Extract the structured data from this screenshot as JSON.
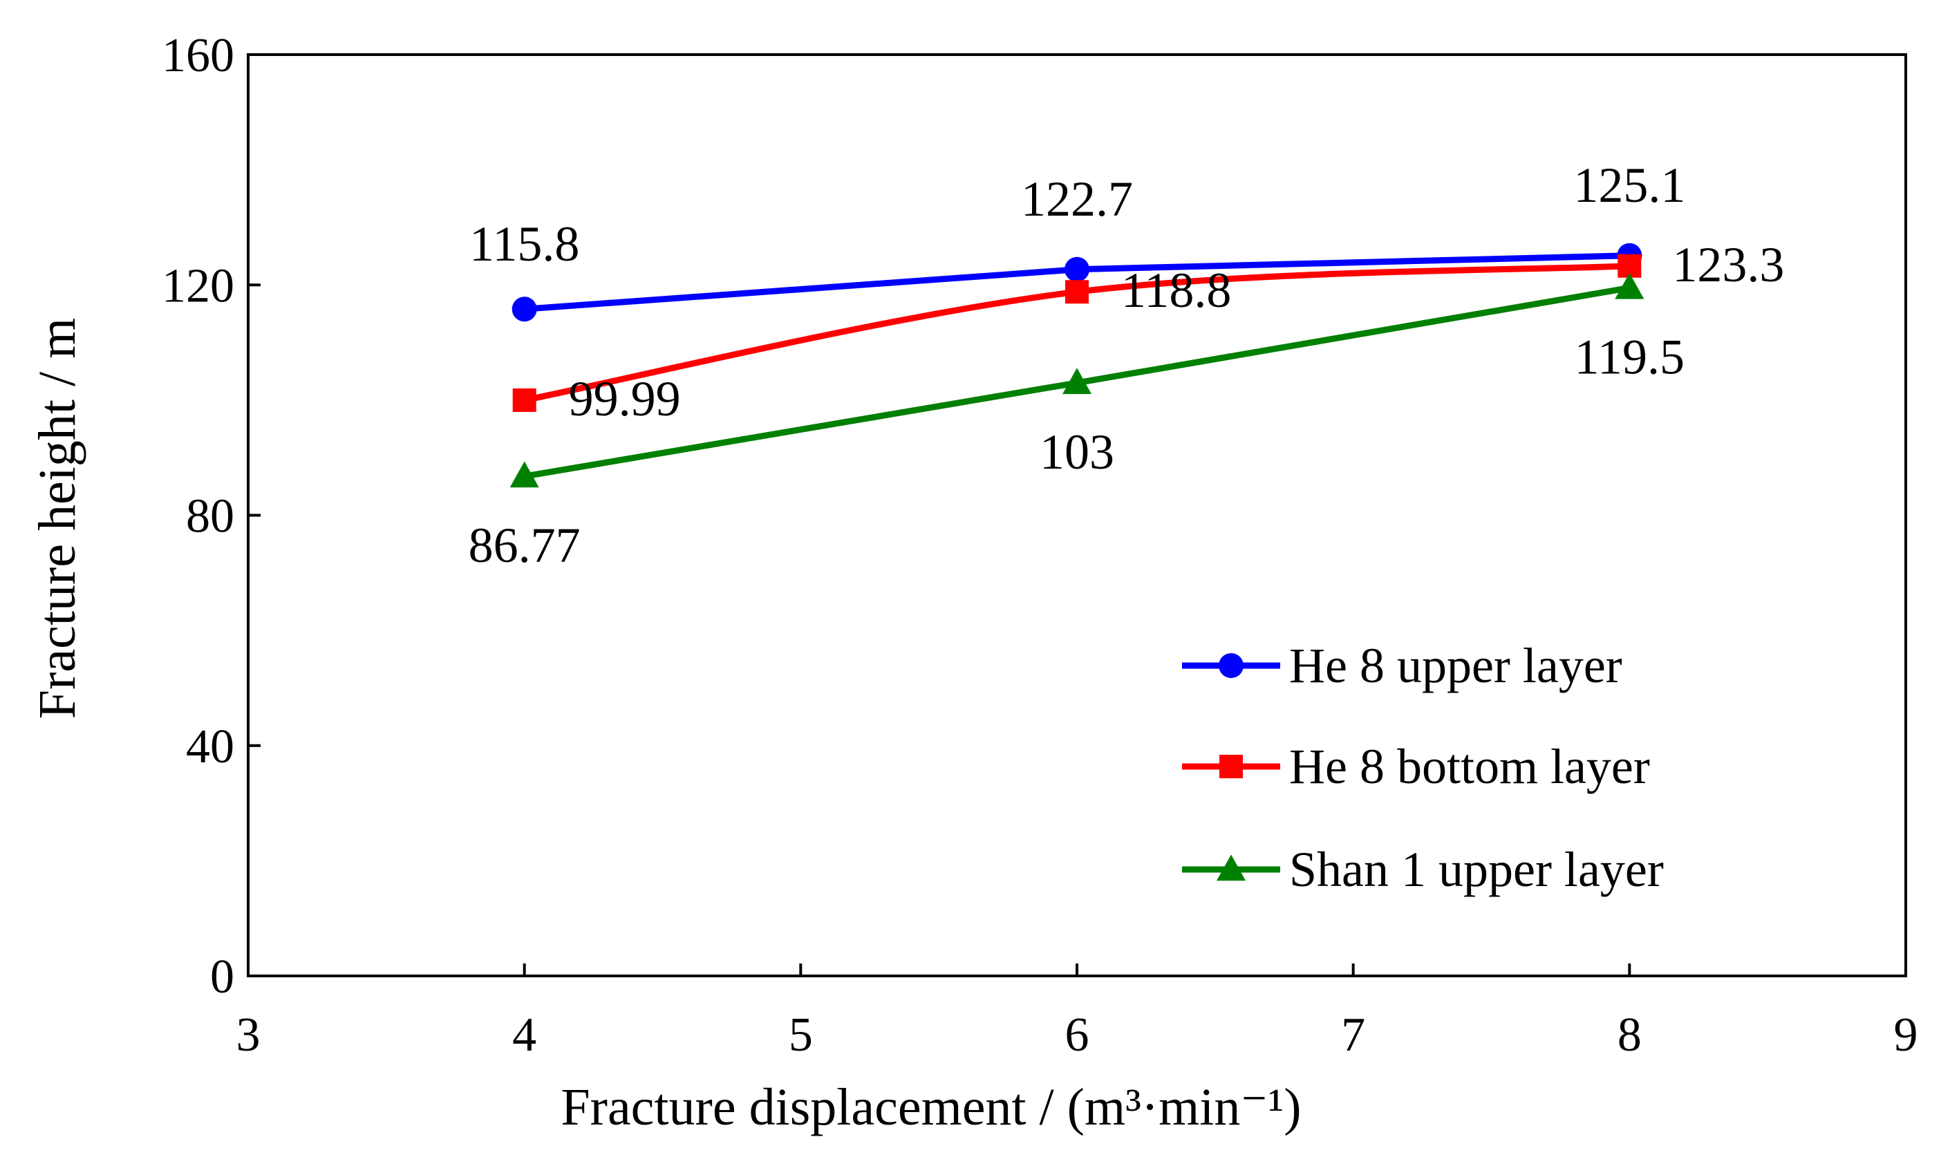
{
  "chart_data": {
    "type": "line",
    "title": "",
    "xlabel": "Fracture displacement / (m³·min⁻¹)",
    "ylabel": "Fracture height / m",
    "xlim": [
      3,
      9
    ],
    "ylim": [
      0,
      160
    ],
    "xticks": [
      3,
      4,
      5,
      6,
      7,
      8,
      9
    ],
    "yticks": [
      0,
      40,
      80,
      120,
      160
    ],
    "grid": false,
    "legend_position": "bottom-right",
    "x": [
      4,
      6,
      8
    ],
    "series": [
      {
        "name": "He 8 upper layer",
        "color": "#0000FF",
        "marker": "circle",
        "values": [
          115.8,
          122.7,
          125.1
        ],
        "labels": [
          "115.8",
          "122.7",
          "125.1"
        ]
      },
      {
        "name": "He 8 bottom layer",
        "color": "#FF0000",
        "marker": "square",
        "values": [
          99.99,
          118.8,
          123.3
        ],
        "labels": [
          "99.99",
          "118.8",
          "123.3"
        ]
      },
      {
        "name": "Shan 1 upper layer",
        "color": "#008000",
        "marker": "triangle",
        "values": [
          86.77,
          103,
          119.5
        ],
        "labels": [
          "86.77",
          "103",
          "119.5"
        ]
      }
    ]
  }
}
